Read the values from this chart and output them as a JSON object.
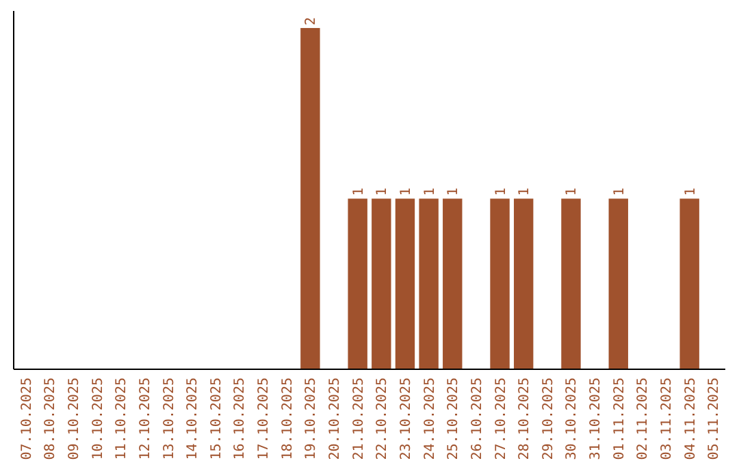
{
  "chart_data": {
    "type": "bar",
    "categories": [
      "07.10.2025",
      "08.10.2025",
      "09.10.2025",
      "10.10.2025",
      "11.10.2025",
      "12.10.2025",
      "13.10.2025",
      "14.10.2025",
      "15.10.2025",
      "16.10.2025",
      "17.10.2025",
      "18.10.2025",
      "19.10.2025",
      "20.10.2025",
      "21.10.2025",
      "22.10.2025",
      "23.10.2025",
      "24.10.2025",
      "25.10.2025",
      "26.10.2025",
      "27.10.2025",
      "28.10.2025",
      "29.10.2025",
      "30.10.2025",
      "31.10.2025",
      "01.11.2025",
      "02.11.2025",
      "03.11.2025",
      "04.11.2025",
      "05.11.2025"
    ],
    "values": [
      null,
      null,
      null,
      null,
      null,
      null,
      null,
      null,
      null,
      null,
      null,
      null,
      2,
      null,
      1,
      1,
      1,
      1,
      1,
      null,
      1,
      1,
      null,
      1,
      null,
      1,
      null,
      null,
      1,
      null
    ],
    "data_labels": true,
    "color": "#a0522d",
    "ylim": [
      0,
      2.1
    ],
    "tick_labels": "x",
    "grid": false
  }
}
